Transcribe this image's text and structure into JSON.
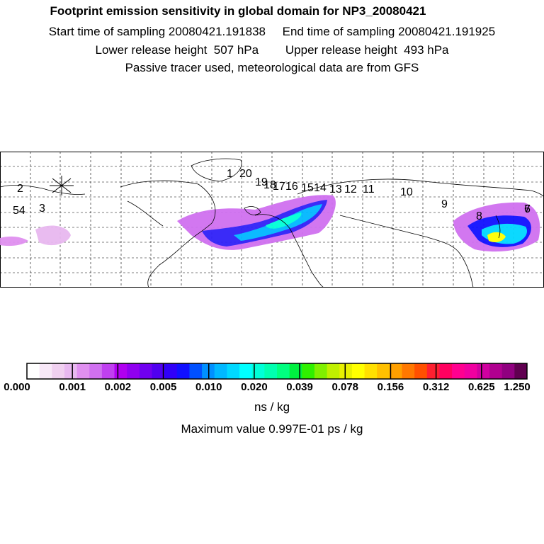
{
  "header": {
    "title": "Footprint emission sensitivity in global domain for NP3_20080421",
    "sampling_line": "Start time of sampling 20080421.191838     End time of sampling 20080421.191925",
    "height_line": "Lower release height  507 hPa        Upper release height  493 hPa",
    "tracer_line": "Passive tracer used, meteorological data are from GFS"
  },
  "map": {
    "trajectory_labels": [
      "54",
      "3",
      "2",
      "1",
      "20",
      "19",
      "18",
      "17",
      "16",
      "15",
      "14",
      "13",
      "12",
      "11",
      "10",
      "9",
      "8",
      "7",
      "6"
    ],
    "colors": {
      "background": "#ffffff",
      "land_outline": "#000000",
      "grid": "#000000"
    }
  },
  "colorbar": {
    "colors": [
      "#ffffff",
      "#f8e8f8",
      "#f0d0f0",
      "#e8b8f0",
      "#e090f0",
      "#d070f0",
      "#c040f0",
      "#b000f0",
      "#9000f0",
      "#7000f0",
      "#5000f0",
      "#3000f8",
      "#1010ff",
      "#0050ff",
      "#0090ff",
      "#00b8ff",
      "#00d8ff",
      "#00ffff",
      "#00ffd8",
      "#00ffb0",
      "#00ff80",
      "#00f040",
      "#30f000",
      "#80f000",
      "#c0f000",
      "#e8f000",
      "#ffff00",
      "#ffe000",
      "#ffc000",
      "#ffa000",
      "#ff7800",
      "#ff5000",
      "#ff2030",
      "#ff0060",
      "#ff0090",
      "#f000a0",
      "#d000a0",
      "#b00090",
      "#900080",
      "#600050"
    ],
    "tick_labels": [
      "0.000",
      "0.001",
      "0.002",
      "0.005",
      "0.010",
      "0.020",
      "0.039",
      "0.078",
      "0.156",
      "0.312",
      "0.625",
      "1.250"
    ],
    "units": "ns / kg",
    "max_value": "Maximum value  0.997E-01 ps / kg"
  }
}
